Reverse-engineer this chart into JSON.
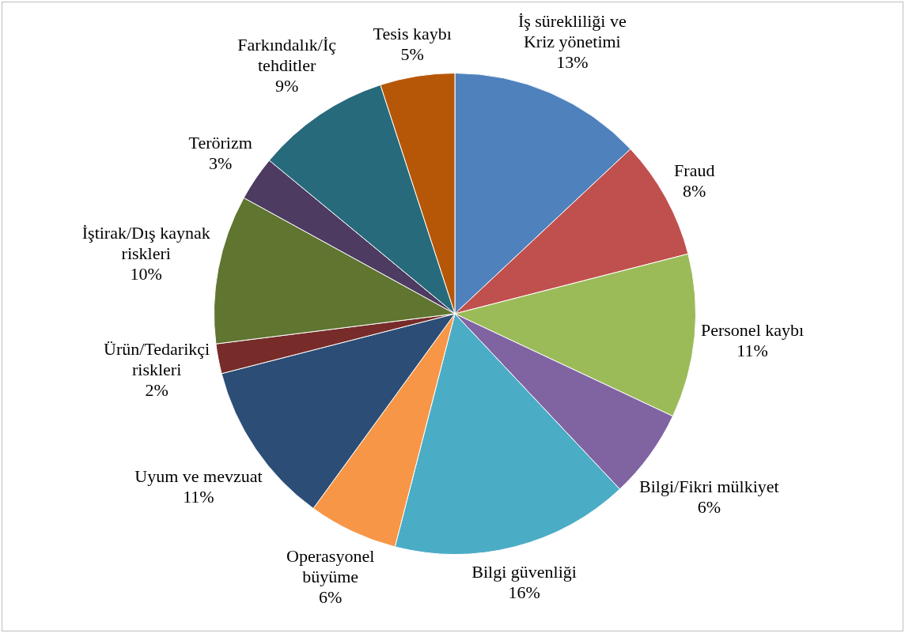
{
  "chart_data": {
    "type": "pie",
    "categories": [
      "İş sürekliliği ve Kriz yönetimi",
      "Fraud",
      "Personel kaybı",
      "Bilgi/Fikri mülkiyet",
      "Bilgi güvenliği",
      "Operasyonel büyüme",
      "Uyum ve mevzuat",
      "Ürün/Tedarikçi riskleri",
      "İştirak/Dış kaynak riskleri",
      "Terörizm",
      "Farkındalık/İç tehditler",
      "Tesis kaybı"
    ],
    "values": [
      13,
      8,
      11,
      6,
      16,
      6,
      11,
      2,
      10,
      3,
      9,
      5
    ],
    "value_labels": [
      "13%",
      "8%",
      "11%",
      "6%",
      "16%",
      "6%",
      "11%",
      "2%",
      "10%",
      "3%",
      "9%",
      "5%"
    ],
    "colors": [
      "#4f81bd",
      "#c0504d",
      "#9bbb59",
      "#8064a2",
      "#4bacc6",
      "#f79646",
      "#2c4d75",
      "#772c2a",
      "#5f7530",
      "#4d3b62",
      "#276a7c",
      "#b65708"
    ],
    "legend": false
  }
}
